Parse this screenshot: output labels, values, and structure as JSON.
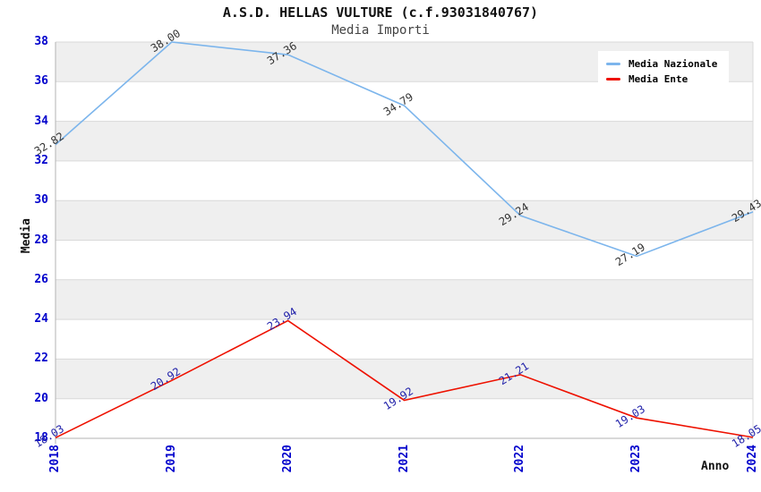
{
  "chart_data": {
    "type": "line",
    "title": "A.S.D. HELLAS VULTURE (c.f.93031840767)",
    "subtitle": "Media Importi",
    "xlabel": "Anno",
    "ylabel": "Media",
    "categories": [
      "2018",
      "2019",
      "2020",
      "2021",
      "2022",
      "2023",
      "2024"
    ],
    "series": [
      {
        "name": "Media Nazionale",
        "color": "#7cb5ec",
        "label_color": "#333333",
        "values": [
          32.82,
          38.0,
          37.36,
          34.79,
          29.24,
          27.19,
          29.43
        ]
      },
      {
        "name": "Media Ente",
        "color": "#ee1100",
        "label_color": "#2222aa",
        "values": [
          18.03,
          20.92,
          23.94,
          19.92,
          21.21,
          19.03,
          18.05
        ]
      }
    ],
    "ylim": [
      18,
      38
    ],
    "ytick_step": 2,
    "legend_position": "top-right",
    "grid": "horizontal-bands",
    "colors": {
      "tick_label": "#0000cc",
      "band": "#efefef",
      "gridline": "#d9d9d9",
      "axis_line": "#b3b3b3",
      "background": "#ffffff"
    }
  }
}
